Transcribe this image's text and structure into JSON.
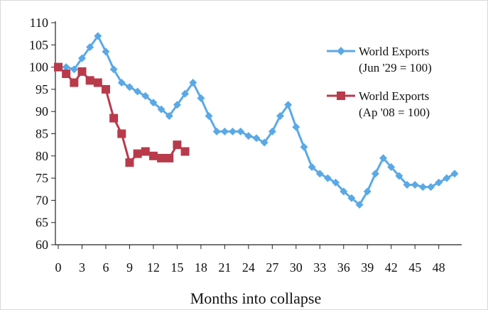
{
  "chart_data": {
    "type": "line",
    "xlabel": "Months into collapse",
    "ylabel": "",
    "ylim": [
      60,
      110
    ],
    "xlim": [
      0,
      50
    ],
    "yticks": [
      60,
      65,
      70,
      75,
      80,
      85,
      90,
      95,
      100,
      105,
      110
    ],
    "xticks": [
      0,
      3,
      6,
      9,
      12,
      15,
      18,
      21,
      24,
      27,
      30,
      33,
      36,
      39,
      42,
      45,
      48
    ],
    "legend_position": "top-right",
    "series": [
      {
        "name": "World Exports (Jun '29 = 100)",
        "legend_line1": "World Exports",
        "legend_line2": "(Jun '29 = 100)",
        "color": "#5aa9e6",
        "marker": "diamond",
        "x": [
          0,
          1,
          2,
          3,
          4,
          5,
          6,
          7,
          8,
          9,
          10,
          11,
          12,
          13,
          14,
          15,
          16,
          17,
          18,
          19,
          20,
          21,
          22,
          23,
          24,
          25,
          26,
          27,
          28,
          29,
          30,
          31,
          32,
          33,
          34,
          35,
          36,
          37,
          38,
          39,
          40,
          41,
          42,
          43,
          44,
          45,
          46,
          47,
          48,
          49,
          50
        ],
        "values": [
          100,
          100,
          99.5,
          102,
          104.5,
          107,
          103.5,
          99.5,
          96.5,
          95.5,
          94.5,
          93.5,
          92,
          90.5,
          89,
          91.5,
          94,
          96.5,
          93,
          89,
          85.5,
          85.5,
          85.5,
          85.5,
          84.5,
          84,
          83,
          85.5,
          89,
          91.5,
          86.5,
          82,
          77.5,
          76,
          75,
          74,
          72,
          70.5,
          69,
          72,
          76,
          79.5,
          77.5,
          75.5,
          73.5,
          73.5,
          73,
          73,
          74,
          75,
          76
        ]
      },
      {
        "name": "World Exports (Ap '08 = 100)",
        "legend_line1": "World Exports",
        "legend_line2": "(Ap '08 = 100)",
        "color": "#b83a4b",
        "marker": "square",
        "x": [
          0,
          1,
          2,
          3,
          4,
          5,
          6,
          7,
          8,
          9,
          10,
          11,
          12,
          13,
          14,
          15,
          16
        ],
        "values": [
          100,
          98.5,
          96.5,
          99,
          97,
          96.5,
          95,
          88.5,
          85,
          78.5,
          80.5,
          81,
          80,
          79.5,
          79.5,
          82.5,
          81
        ]
      }
    ]
  }
}
